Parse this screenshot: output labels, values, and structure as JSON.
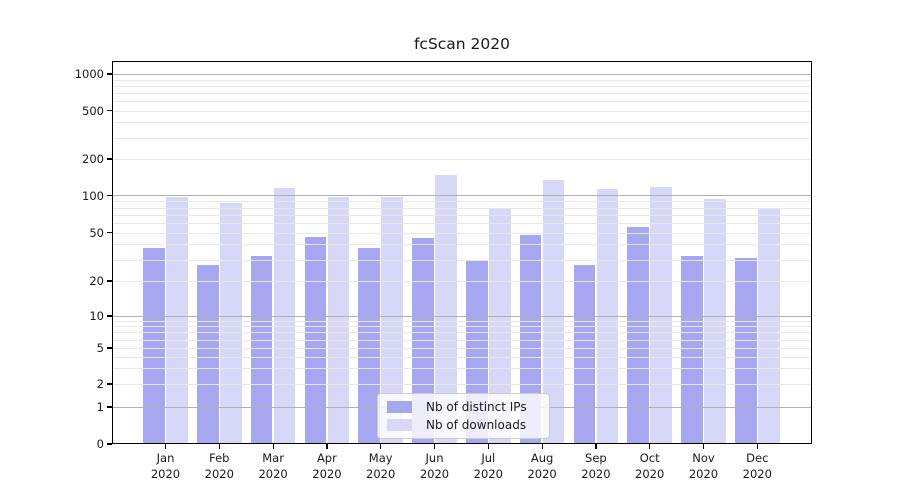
{
  "chart_data": {
    "type": "bar",
    "title": "fcScan 2020",
    "categories": [
      "Jan",
      "Feb",
      "Mar",
      "Apr",
      "May",
      "Jun",
      "Jul",
      "Aug",
      "Sep",
      "Oct",
      "Nov",
      "Dec"
    ],
    "x_year": "2020",
    "series": [
      {
        "name": "Nb of distinct IPs",
        "color": "#a6a6f1",
        "values": [
          37,
          27,
          32,
          46,
          37,
          45,
          29,
          48,
          27,
          55,
          32,
          31
        ]
      },
      {
        "name": "Nb of downloads",
        "color": "#d7d7f8",
        "values": [
          97,
          87,
          115,
          98,
          98,
          148,
          80,
          135,
          113,
          119,
          94,
          79
        ]
      }
    ],
    "y_ticks": [
      0,
      1,
      2,
      5,
      10,
      20,
      50,
      100,
      200,
      500,
      1000
    ],
    "y_scale": "log (1-2-5 ticks with zero baseline)",
    "ylim": [
      0,
      1280
    ],
    "xlabel": "",
    "ylabel": "",
    "grid": "horizontal major (1,10,100,1000) + minor, drawn over bars",
    "legend_position": "lower center inside plot"
  },
  "colors": {
    "bar_distinct_ips": "#a6a6f1",
    "bar_downloads": "#d7d7f8",
    "major_gridline": "#b0b0b0",
    "minor_gridline": "#e8e8e8",
    "axis_spine": "#000000",
    "text": "#1a1a1a",
    "legend_background": "rgba(255,255,255,0.8)",
    "legend_border": "#cccccc"
  }
}
